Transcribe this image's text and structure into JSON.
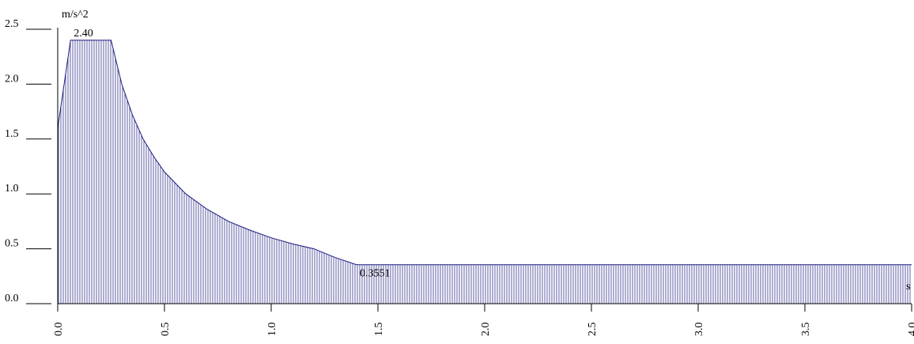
{
  "chart_data": {
    "type": "area",
    "title": "",
    "xlabel": "",
    "x_unit_label": "s",
    "ylabel": "m/s^2",
    "xlim": [
      0.0,
      4.0
    ],
    "ylim": [
      0.0,
      2.5
    ],
    "x_ticks": [
      "0.0",
      "0.5",
      "1.0",
      "1.5",
      "2.0",
      "2.5",
      "3.0",
      "3.5",
      "4.0"
    ],
    "y_ticks": [
      "0.0",
      "0.5",
      "1.0",
      "1.5",
      "2.0",
      "2.5"
    ],
    "grid": false,
    "fill_style": "vertical-hatch",
    "colors": {
      "series": "#1a1a80",
      "axis": "#000000"
    },
    "series": [
      {
        "x": [
          0.0,
          0.06,
          0.1,
          0.15,
          0.25,
          0.3,
          0.35,
          0.4,
          0.45,
          0.5,
          0.6,
          0.7,
          0.8,
          0.9,
          1.0,
          1.1,
          1.2,
          1.3,
          1.4,
          1.5,
          2.0,
          2.5,
          3.0,
          3.5,
          4.0
        ],
        "y": [
          1.6,
          2.4,
          2.4,
          2.4,
          2.4,
          2.0,
          1.72,
          1.5,
          1.34,
          1.2,
          1.0,
          0.86,
          0.75,
          0.67,
          0.6,
          0.545,
          0.5,
          0.42,
          0.3551,
          0.3551,
          0.3551,
          0.3551,
          0.3551,
          0.3551,
          0.3551
        ]
      }
    ],
    "annotations": [
      {
        "text": "2.40",
        "x": 0.06,
        "y": 2.4
      },
      {
        "text": "0.3551",
        "x": 1.4,
        "y": 0.3551
      }
    ]
  }
}
